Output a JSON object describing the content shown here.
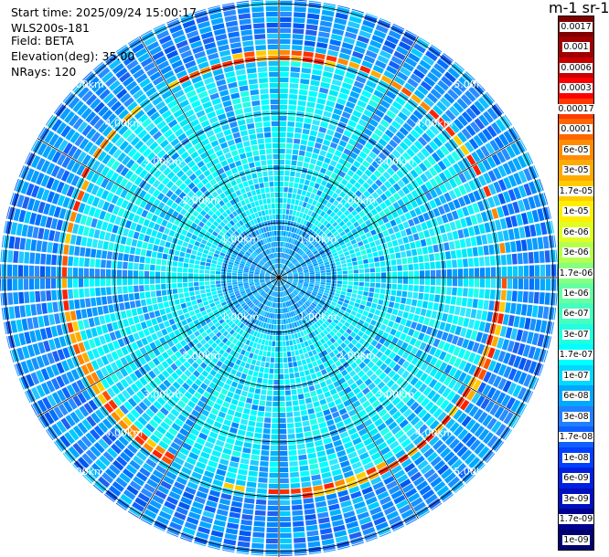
{
  "header": {
    "start_time": "Start time: 2025/09/24 15:00:17",
    "instrument": "WLS200s-181",
    "field": "Field: BETA",
    "elevation": "Elevation(deg): 35.00",
    "nrays": "NRays: 120"
  },
  "colorbar": {
    "title": "m-1 sr-1",
    "labels": [
      "0.0017",
      "0.001",
      "0.0006",
      "0.0003",
      "0.00017",
      "0.0001",
      "6e-05",
      "3e-05",
      "1.7e-05",
      "1e-05",
      "6e-06",
      "3e-06",
      "1.7e-06",
      "1e-06",
      "6e-07",
      "3e-07",
      "1.7e-07",
      "1e-07",
      "6e-08",
      "3e-08",
      "1.7e-08",
      "1e-08",
      "6e-09",
      "3e-09",
      "1.7e-09",
      "1e-09"
    ],
    "colors": [
      "#800000",
      "#a00000",
      "#c80000",
      "#ff0000",
      "#ff3a00",
      "#ff6600",
      "#ff8c00",
      "#ffaa00",
      "#ffcc00",
      "#ffee00",
      "#e0ff20",
      "#b4ff50",
      "#88ff80",
      "#66ffa0",
      "#44ffc0",
      "#22ffe0",
      "#00ffff",
      "#00d8ff",
      "#00a8ff",
      "#2080ff",
      "#1060ff",
      "#0040ff",
      "#0020e0",
      "#0010c0",
      "#000090",
      "#000070"
    ]
  },
  "plot": {
    "ring_labels": [
      "1.00km",
      "2.00km",
      "3.00km",
      "4.00km",
      "5.00km"
    ],
    "rays": 120,
    "range_max_km": 5.0
  }
}
